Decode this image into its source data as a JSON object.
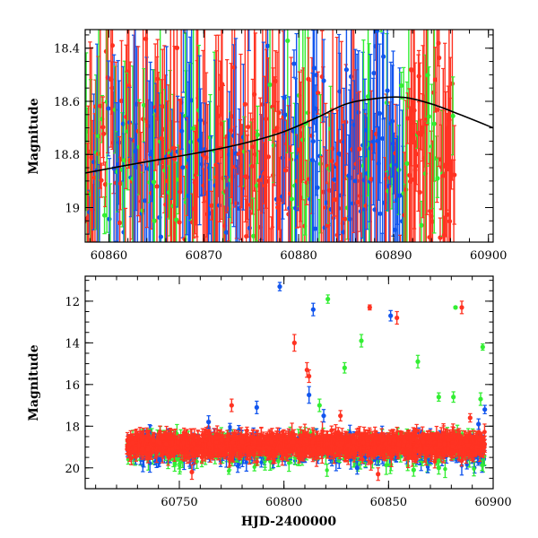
{
  "colors": {
    "red": "#ff3322",
    "green": "#33ee33",
    "blue": "#1155ee",
    "model": "#000000"
  },
  "chart_data": [
    {
      "type": "scatter",
      "title": "",
      "xlabel": "",
      "ylabel": "Magnitude",
      "xlim": [
        60857.5,
        60900.5
      ],
      "ylim": [
        19.13,
        18.33
      ],
      "y_inverted": true,
      "xticks": [
        60860,
        60870,
        60880,
        60890,
        60900
      ],
      "xtick_labels": [
        "60860",
        "60870",
        "60880",
        "60890",
        "60900"
      ],
      "yticks": [
        18.4,
        18.6,
        18.8,
        19.0
      ],
      "ytick_labels": [
        "18.4",
        "18.6",
        "18.8",
        "19"
      ],
      "series_colors": [
        "red",
        "green",
        "blue"
      ],
      "model_curve": {
        "color": "model",
        "x": [
          60857.5,
          60862,
          60866,
          60870,
          60874,
          60878,
          60882,
          60885,
          60888,
          60891,
          60894,
          60897,
          60900.5
        ],
        "y": [
          18.87,
          18.84,
          18.815,
          18.79,
          18.76,
          18.72,
          18.66,
          18.61,
          18.59,
          18.585,
          18.61,
          18.65,
          18.7
        ]
      },
      "dense_observations": {
        "x_range": [
          60857.5,
          60896.5
        ],
        "typical_mag": 18.85,
        "mag_scatter": 0.35,
        "error_range": [
          0.05,
          0.5
        ]
      }
    },
    {
      "type": "scatter",
      "title": "",
      "xlabel": "HJD-2400000",
      "ylabel": "Magnitude",
      "xlim": [
        60705,
        60900
      ],
      "ylim": [
        21,
        10.8
      ],
      "y_inverted": true,
      "xticks": [
        60750,
        60800,
        60850,
        60900
      ],
      "xtick_labels": [
        "60750",
        "60800",
        "60850",
        "60900"
      ],
      "yticks": [
        12,
        14,
        16,
        18,
        20
      ],
      "ytick_labels": [
        "12",
        "14",
        "16",
        "18",
        "20"
      ],
      "series_colors": [
        "red",
        "green",
        "blue"
      ],
      "baseline_observations": {
        "x_range": [
          60725,
          60896
        ],
        "typical_mag": 18.9,
        "mag_scatter": 0.45
      },
      "outliers": [
        {
          "series": "blue",
          "x": 60798,
          "y": 11.3,
          "err": 0.2
        },
        {
          "series": "blue",
          "x": 60814,
          "y": 12.4,
          "err": 0.3
        },
        {
          "series": "green",
          "x": 60821,
          "y": 11.9,
          "err": 0.2
        },
        {
          "series": "red",
          "x": 60841,
          "y": 12.3,
          "err": 0.12
        },
        {
          "series": "blue",
          "x": 60851,
          "y": 12.7,
          "err": 0.25
        },
        {
          "series": "red",
          "x": 60854,
          "y": 12.8,
          "err": 0.3
        },
        {
          "series": "green",
          "x": 60882,
          "y": 12.3,
          "err": 0.05
        },
        {
          "series": "red",
          "x": 60885,
          "y": 12.3,
          "err": 0.3
        },
        {
          "series": "red",
          "x": 60805,
          "y": 14.0,
          "err": 0.4
        },
        {
          "series": "green",
          "x": 60837,
          "y": 13.9,
          "err": 0.3
        },
        {
          "series": "green",
          "x": 60895,
          "y": 14.2,
          "err": 0.15
        },
        {
          "series": "green",
          "x": 60829,
          "y": 15.2,
          "err": 0.25
        },
        {
          "series": "red",
          "x": 60811,
          "y": 15.3,
          "err": 0.35
        },
        {
          "series": "red",
          "x": 60812,
          "y": 15.6,
          "err": 0.3
        },
        {
          "series": "green",
          "x": 60864,
          "y": 14.9,
          "err": 0.3
        },
        {
          "series": "blue",
          "x": 60812,
          "y": 16.5,
          "err": 0.4
        },
        {
          "series": "green",
          "x": 60874,
          "y": 16.6,
          "err": 0.2
        },
        {
          "series": "green",
          "x": 60881,
          "y": 16.6,
          "err": 0.25
        },
        {
          "series": "green",
          "x": 60894,
          "y": 16.7,
          "err": 0.3
        },
        {
          "series": "red",
          "x": 60775,
          "y": 17.0,
          "err": 0.3
        },
        {
          "series": "blue",
          "x": 60787,
          "y": 17.1,
          "err": 0.3
        },
        {
          "series": "green",
          "x": 60817,
          "y": 17.0,
          "err": 0.3
        },
        {
          "series": "blue",
          "x": 60819,
          "y": 17.5,
          "err": 0.3
        },
        {
          "series": "blue",
          "x": 60896,
          "y": 17.2,
          "err": 0.2
        },
        {
          "series": "blue",
          "x": 60764,
          "y": 17.8,
          "err": 0.3
        },
        {
          "series": "red",
          "x": 60827,
          "y": 17.5,
          "err": 0.25
        },
        {
          "series": "red",
          "x": 60889,
          "y": 17.6,
          "err": 0.2
        },
        {
          "series": "blue",
          "x": 60893,
          "y": 17.9,
          "err": 0.25
        },
        {
          "series": "red",
          "x": 60756,
          "y": 20.2,
          "err": 0.35
        },
        {
          "series": "red",
          "x": 60845,
          "y": 20.3,
          "err": 0.3
        },
        {
          "series": "blue",
          "x": 60835,
          "y": 20.0,
          "err": 0.3
        },
        {
          "series": "green",
          "x": 60862,
          "y": 20.1,
          "err": 0.3
        },
        {
          "series": "green",
          "x": 60874,
          "y": 20.0,
          "err": 0.3
        }
      ]
    }
  ]
}
